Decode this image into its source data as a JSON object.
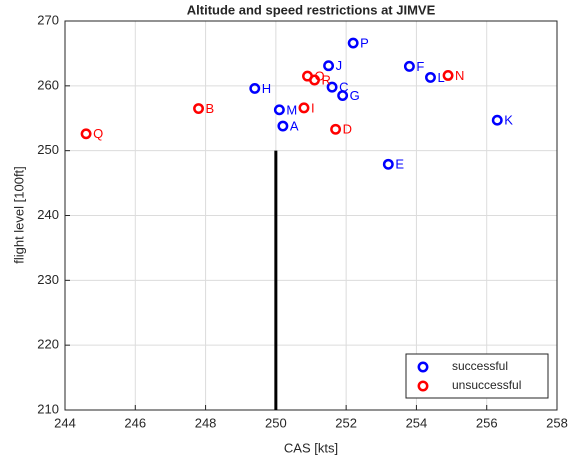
{
  "chart_data": {
    "type": "scatter",
    "title": "Altitude and speed restrictions at JIMVE",
    "x_label": "CAS [kts]",
    "y_label": "flight level [100ft]",
    "xlim": [
      244,
      258
    ],
    "xticks": [
      244,
      246,
      248,
      250,
      252,
      254,
      256,
      258
    ],
    "ylim": [
      210,
      270
    ],
    "yticks": [
      210,
      220,
      230,
      240,
      250,
      260,
      270
    ],
    "grid": true,
    "legend": "lower right",
    "series": [
      {
        "name": "successful",
        "color": "#0000ff",
        "labels": [
          "P",
          "J",
          "F",
          "L",
          "H",
          "C",
          "G",
          "M",
          "A",
          "K",
          "E"
        ],
        "x": [
          252.2,
          251.5,
          253.8,
          254.4,
          249.4,
          251.6,
          251.9,
          250.1,
          250.2,
          256.3,
          253.2
        ],
        "values": [
          266.6,
          263.1,
          263,
          261.3,
          259.6,
          259.8,
          258.5,
          256.3,
          253.8,
          254.7,
          247.9
        ]
      },
      {
        "name": "unsuccessful",
        "color": "#ff0000",
        "labels": [
          "O",
          "R",
          "N",
          "B",
          "Q",
          "I",
          "D"
        ],
        "x": [
          250.9,
          251.1,
          254.9,
          247.8,
          244.6,
          250.8,
          251.7
        ],
        "values": [
          261.5,
          260.9,
          261.6,
          256.5,
          252.6,
          256.6,
          253.3
        ]
      }
    ],
    "vline": {
      "x": 250,
      "ymin": 210,
      "ymax": 250,
      "color": "#000000"
    }
  }
}
